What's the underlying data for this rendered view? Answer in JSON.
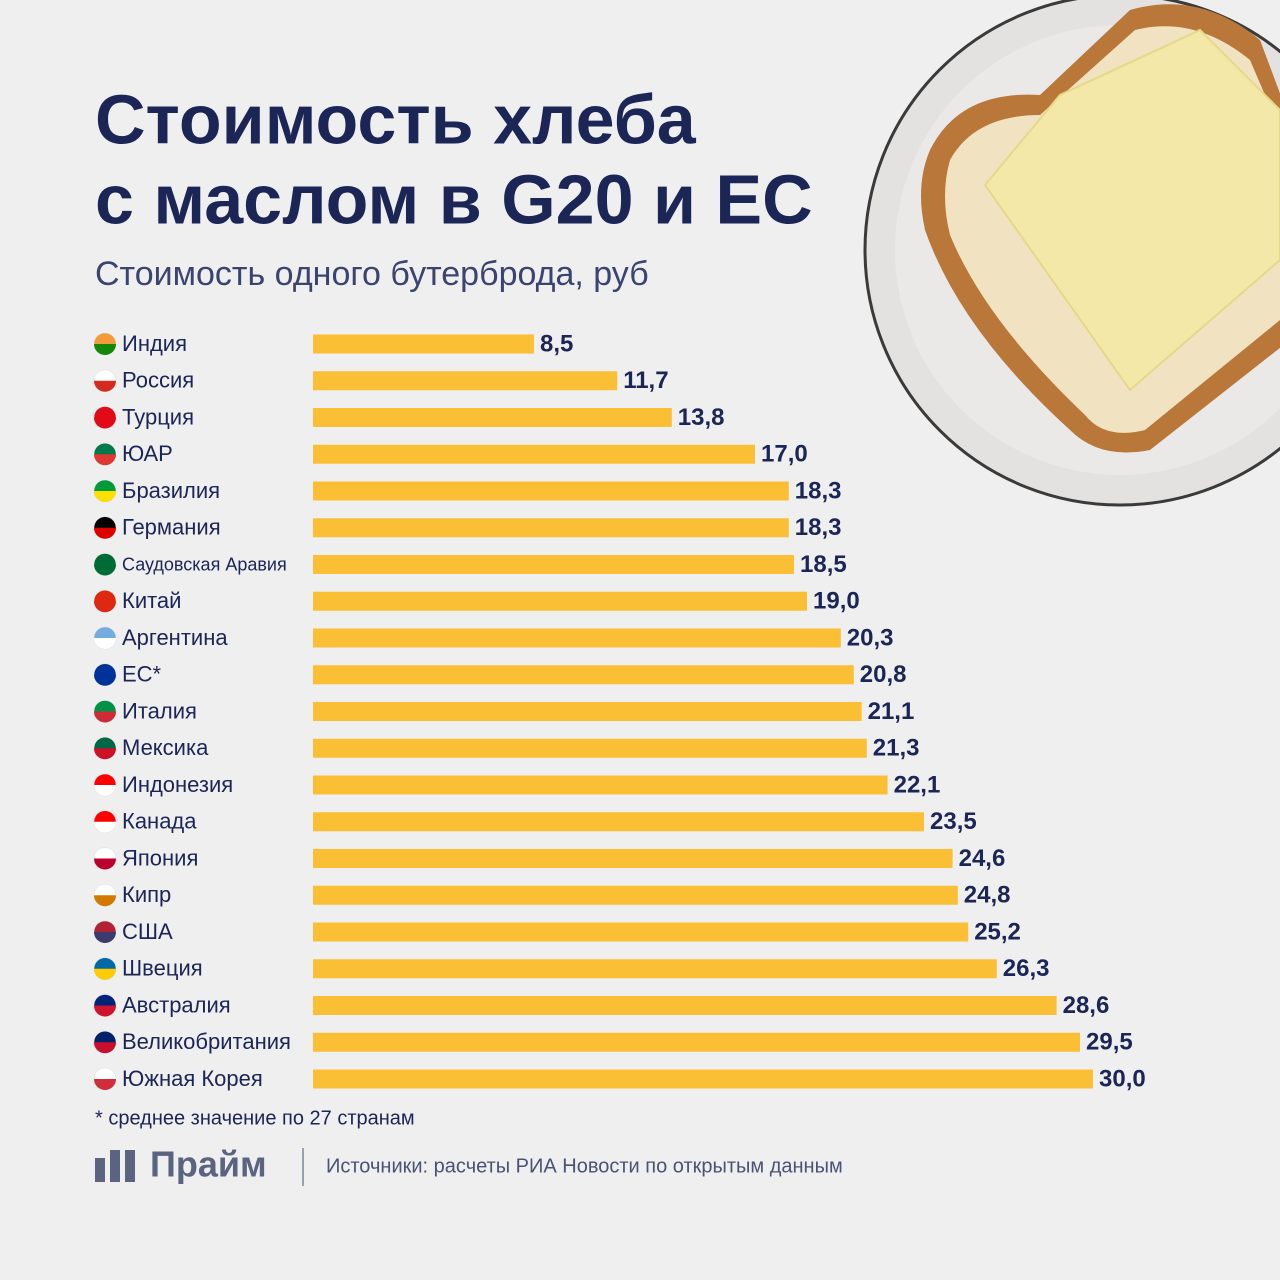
{
  "chart_data": {
    "type": "bar",
    "orientation": "horizontal",
    "title": [
      "Стоимость хлеба",
      "с маслом в G20 и ЕС"
    ],
    "subtitle": "Стоимость одного бутерброда, руб",
    "categories": [
      "Индия",
      "Россия",
      "Турция",
      "ЮАР",
      "Бразилия",
      "Германия",
      "Саудовская Аравия",
      "Китай",
      "Аргентина",
      "ЕС*",
      "Италия",
      "Мексика",
      "Индонезия",
      "Канада",
      "Япония",
      "Кипр",
      "США",
      "Швеция",
      "Австралия",
      "Великобритания",
      "Южная Корея"
    ],
    "values": [
      8.5,
      11.7,
      13.8,
      17.0,
      18.3,
      18.3,
      18.5,
      19.0,
      20.3,
      20.8,
      21.1,
      21.3,
      22.1,
      23.5,
      24.6,
      24.8,
      25.2,
      26.3,
      28.6,
      29.5,
      30.0
    ],
    "value_labels": [
      "8,5",
      "11,7",
      "13,8",
      "17,0",
      "18,3",
      "18,3",
      "18,5",
      "19,0",
      "20,3",
      "20,8",
      "21,1",
      "21,3",
      "22,1",
      "23,5",
      "24,6",
      "24,8",
      "25,2",
      "26,3",
      "28,6",
      "29,5",
      "30,0"
    ],
    "color": "#fbbf36",
    "footnote": "* среднее значение по 27 странам",
    "logo": "Прайм",
    "source": "Источники: расчеты РИА Новости по открытым данным"
  }
}
